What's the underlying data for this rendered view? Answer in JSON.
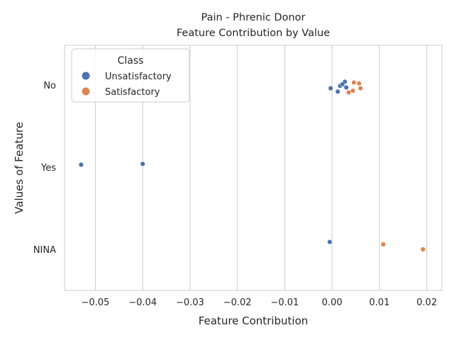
{
  "chart_data": {
    "type": "scatter",
    "title": "Pain - Phrenic Donor",
    "subtitle": "Feature Contribution by Value",
    "xlabel": "Feature Contribution",
    "ylabel": "Values of Feature",
    "xlim": [
      -0.0565,
      0.0232
    ],
    "x_ticks": [
      -0.05,
      -0.04,
      -0.03,
      -0.02,
      -0.01,
      0.0,
      0.01,
      0.02
    ],
    "x_tick_labels": [
      "−0.05",
      "−0.04",
      "−0.03",
      "−0.02",
      "−0.01",
      "0.00",
      "0.01",
      "0.02"
    ],
    "categories": [
      "No",
      "Yes",
      "NINA"
    ],
    "grid": "vertical",
    "legend": {
      "title": "Class",
      "placement": "top-left"
    },
    "series": [
      {
        "name": "Unsatisfactory",
        "color": "#4c72b0",
        "points": [
          {
            "x": 0.0027,
            "category": "No",
            "jitter": -0.04
          },
          {
            "x": 0.0017,
            "category": "No",
            "jitter": 0.01
          },
          {
            "x": 0.0022,
            "category": "No",
            "jitter": -0.01
          },
          {
            "x": 0.003,
            "category": "No",
            "jitter": 0.03
          },
          {
            "x": -0.0003,
            "category": "No",
            "jitter": 0.04
          },
          {
            "x": 0.0012,
            "category": "No",
            "jitter": 0.08
          },
          {
            "x": -0.053,
            "category": "Yes",
            "jitter": -0.03
          },
          {
            "x": -0.04,
            "category": "Yes",
            "jitter": -0.04
          },
          {
            "x": -0.0005,
            "category": "NINA",
            "jitter": -0.09
          }
        ]
      },
      {
        "name": "Satisfactory",
        "color": "#dd8452",
        "points": [
          {
            "x": 0.0046,
            "category": "No",
            "jitter": -0.03
          },
          {
            "x": 0.0057,
            "category": "No",
            "jitter": -0.02
          },
          {
            "x": 0.006,
            "category": "No",
            "jitter": 0.04
          },
          {
            "x": 0.0044,
            "category": "No",
            "jitter": 0.07
          },
          {
            "x": 0.0035,
            "category": "No",
            "jitter": 0.09
          },
          {
            "x": 0.0108,
            "category": "NINA",
            "jitter": -0.06
          },
          {
            "x": 0.0192,
            "category": "NINA",
            "jitter": 0.0
          }
        ]
      }
    ]
  }
}
